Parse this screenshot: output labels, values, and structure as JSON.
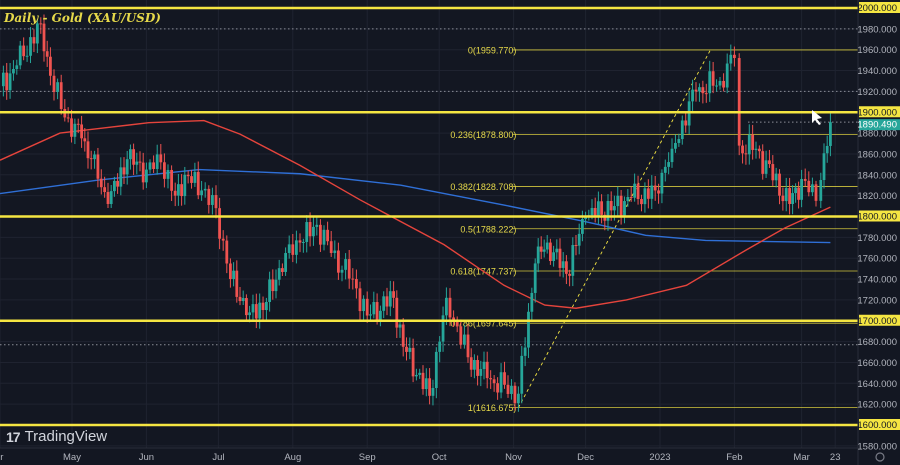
{
  "header": {
    "title": "Daily - Gold (XAU/USD)",
    "logo_text": "TradingView",
    "logo_glyph": "17"
  },
  "colors": {
    "background": "#131722",
    "up": "#26a69a",
    "down": "#ef5350",
    "level": "#f5e642",
    "ma_red": "#e5443c",
    "ma_blue": "#2f6fd6",
    "last_price": "#26a69a"
  },
  "chart_data": {
    "type": "candlestick",
    "title": "Daily - Gold (XAU/USD)",
    "ylim": [
      1570,
      2012
    ],
    "y_ticks": [
      2000,
      1980,
      1960,
      1940,
      1920,
      1900,
      1880,
      1860,
      1840,
      1820,
      1800,
      1780,
      1760,
      1740,
      1720,
      1700,
      1680,
      1660,
      1640,
      1620,
      1600,
      1580
    ],
    "x_ticks": [
      {
        "label": "Apr",
        "date": "2022-04-01"
      },
      {
        "label": "May",
        "date": "2022-05-01"
      },
      {
        "label": "Jun",
        "date": "2022-06-01"
      },
      {
        "label": "Jul",
        "date": "2022-07-01"
      },
      {
        "label": "Aug",
        "date": "2022-08-01"
      },
      {
        "label": "Sep",
        "date": "2022-09-01"
      },
      {
        "label": "Oct",
        "date": "2022-10-01"
      },
      {
        "label": "Nov",
        "date": "2022-11-01"
      },
      {
        "label": "Dec",
        "date": "2022-12-01"
      },
      {
        "label": "2023",
        "date": "2023-01-01"
      },
      {
        "label": "Feb",
        "date": "2023-02-01"
      },
      {
        "label": "Mar",
        "date": "2023-03-01"
      },
      {
        "label": "23",
        "date": "2023-03-15"
      }
    ],
    "close_path": [
      [
        "2022-04-01",
        1925
      ],
      [
        "2022-04-08",
        1945
      ],
      [
        "2022-04-18",
        1985
      ],
      [
        "2022-04-22",
        1935
      ],
      [
        "2022-04-28",
        1895
      ],
      [
        "2022-05-05",
        1875
      ],
      [
        "2022-05-09",
        1855
      ],
      [
        "2022-05-16",
        1812
      ],
      [
        "2022-05-24",
        1855
      ],
      [
        "2022-06-01",
        1845
      ],
      [
        "2022-06-07",
        1852
      ],
      [
        "2022-06-13",
        1820
      ],
      [
        "2022-06-17",
        1840
      ],
      [
        "2022-06-24",
        1825
      ],
      [
        "2022-06-30",
        1808
      ],
      [
        "2022-07-06",
        1740
      ],
      [
        "2022-07-14",
        1708
      ],
      [
        "2022-07-21",
        1718
      ],
      [
        "2022-07-29",
        1765
      ],
      [
        "2022-08-04",
        1775
      ],
      [
        "2022-08-11",
        1792
      ],
      [
        "2022-08-17",
        1765
      ],
      [
        "2022-08-26",
        1740
      ],
      [
        "2022-09-01",
        1705
      ],
      [
        "2022-09-12",
        1722
      ],
      [
        "2022-09-16",
        1675
      ],
      [
        "2022-09-27",
        1628
      ],
      [
        "2022-10-04",
        1722
      ],
      [
        "2022-10-13",
        1665
      ],
      [
        "2022-10-21",
        1645
      ],
      [
        "2022-11-03",
        1630
      ],
      [
        "2022-11-10",
        1755
      ],
      [
        "2022-11-15",
        1775
      ],
      [
        "2022-11-23",
        1745
      ],
      [
        "2022-12-01",
        1800
      ],
      [
        "2022-12-13",
        1810
      ],
      [
        "2022-12-20",
        1818
      ],
      [
        "2022-12-30",
        1825
      ],
      [
        "2023-01-06",
        1865
      ],
      [
        "2023-01-16",
        1920
      ],
      [
        "2023-01-26",
        1930
      ],
      [
        "2023-02-01",
        1952
      ],
      [
        "2023-02-03",
        1868
      ],
      [
        "2023-02-10",
        1865
      ],
      [
        "2023-02-24",
        1812
      ],
      [
        "2023-03-01",
        1836
      ],
      [
        "2023-03-07",
        1815
      ],
      [
        "2023-03-09",
        1835
      ],
      [
        "2023-03-13",
        1890.49
      ]
    ],
    "ma_red": [
      [
        "2022-04-01",
        1854
      ],
      [
        "2022-04-26",
        1880
      ],
      [
        "2022-06-02",
        1890
      ],
      [
        "2022-06-25",
        1892
      ],
      [
        "2022-07-10",
        1879
      ],
      [
        "2022-08-04",
        1849
      ],
      [
        "2022-08-29",
        1816
      ],
      [
        "2022-10-03",
        1773
      ],
      [
        "2022-10-28",
        1734
      ],
      [
        "2022-11-14",
        1715
      ],
      [
        "2022-11-27",
        1712
      ],
      [
        "2022-12-18",
        1720
      ],
      [
        "2023-01-12",
        1734
      ],
      [
        "2023-02-06",
        1768
      ],
      [
        "2023-02-22",
        1789
      ],
      [
        "2023-03-13",
        1809
      ]
    ],
    "ma_blue": [
      [
        "2022-04-01",
        1822
      ],
      [
        "2022-05-12",
        1835
      ],
      [
        "2022-06-23",
        1845
      ],
      [
        "2022-08-04",
        1841
      ],
      [
        "2022-09-15",
        1830
      ],
      [
        "2022-10-28",
        1811
      ],
      [
        "2022-12-01",
        1795
      ],
      [
        "2022-12-26",
        1782
      ],
      [
        "2023-01-20",
        1777
      ],
      [
        "2023-03-13",
        1775
      ]
    ],
    "horizontal_levels": [
      2000,
      1900,
      1800,
      1700,
      1600
    ],
    "dotted_levels": [
      1980,
      1920,
      1677
    ],
    "last_price": {
      "value": 1890.49,
      "label": "1890.490"
    },
    "axis_badges": [
      "2000.000",
      "1900.000",
      "1800.000",
      "1700.000",
      "1600.000"
    ],
    "fibonacci": {
      "from": [
        "2022-11-03",
        1616.675
      ],
      "to": [
        "2023-01-22",
        1959.77
      ],
      "line_start": "2022-11-03",
      "levels": [
        {
          "label": "0(1959.770)",
          "value": 1959.77
        },
        {
          "label": "0.236(1878.800)",
          "value": 1878.8
        },
        {
          "label": "0.382(1828.708)",
          "value": 1828.708
        },
        {
          "label": "0.5(1788.222)",
          "value": 1788.222
        },
        {
          "label": "0.618(1747.737)",
          "value": 1747.737
        },
        {
          "label": "0.786(1697.645)",
          "value": 1697.645
        },
        {
          "label": "1(1616.675)",
          "value": 1616.675
        }
      ]
    }
  }
}
